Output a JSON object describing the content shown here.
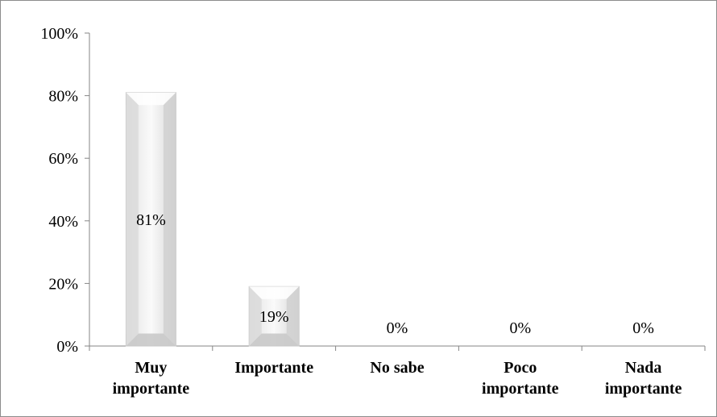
{
  "chart_data": {
    "type": "bar",
    "categories": [
      [
        "Muy",
        "importante"
      ],
      [
        "Importante"
      ],
      [
        "No sabe"
      ],
      [
        "Poco",
        "importante"
      ],
      [
        "Nada",
        "importante"
      ]
    ],
    "values": [
      81,
      19,
      0,
      0,
      0
    ],
    "data_labels": [
      "81%",
      "19%",
      "0%",
      "0%",
      "0%"
    ],
    "ylim": [
      0,
      100
    ],
    "yticks": [
      0,
      20,
      40,
      60,
      80,
      100
    ],
    "ytick_labels": [
      "0%",
      "20%",
      "40%",
      "60%",
      "80%",
      "100%"
    ],
    "grid": false,
    "legend": "none",
    "bar_color": "#ececec",
    "bar_edge_color": "#c8c8c8"
  }
}
